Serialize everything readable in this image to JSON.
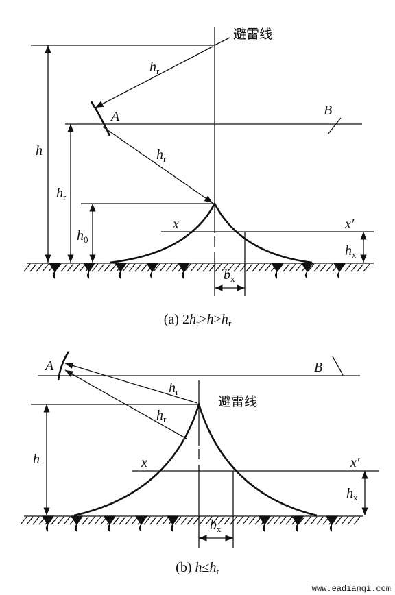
{
  "panel_a": {
    "wire_label": "避雷线",
    "radius_1": {
      "base": "h",
      "sub": "r"
    },
    "radius_2": {
      "base": "h",
      "sub": "r"
    },
    "point_a": "A",
    "line_b": "B",
    "height": "h",
    "height_r": {
      "base": "h",
      "sub": "r"
    },
    "height_0": {
      "base": "h",
      "sub": "0"
    },
    "x_left": "x",
    "x_right": "x′",
    "height_x": {
      "base": "h",
      "sub": "x"
    },
    "width_x": {
      "base": "b",
      "sub": "x"
    },
    "caption": [
      "(a)  2",
      "h",
      "r",
      ">",
      "h",
      ">",
      "h",
      "r"
    ]
  },
  "panel_b": {
    "wire_label": "避雷线",
    "radius_1": {
      "base": "h",
      "sub": "r"
    },
    "radius_2": {
      "base": "h",
      "sub": "r"
    },
    "point_a": "A",
    "line_b": "B",
    "height": "h",
    "x_left": "x",
    "x_right": "x′",
    "height_x": {
      "base": "h",
      "sub": "x"
    },
    "width_x": {
      "base": "b",
      "sub": "x"
    },
    "caption": [
      "(b)  ",
      "h",
      "≤",
      "h",
      "r"
    ]
  },
  "watermark": "www.eadianqi.com"
}
